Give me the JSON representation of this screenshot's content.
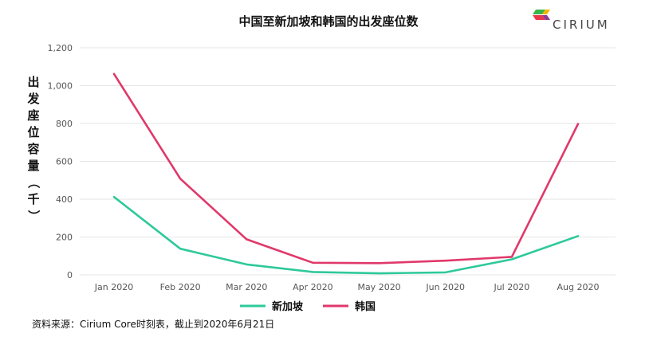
{
  "colors": {
    "singapore": "#2ec99a",
    "korea": "#e0386a",
    "logo_green": "#3ab54a",
    "logo_red": "#e8374b",
    "logo_yellow": "#f5b400",
    "logo_purple": "#8e3a96"
  },
  "logo": {
    "text": "CIRIUM",
    "icon": "cirium-logo-icon"
  },
  "source": "资料来源：Cirium Core时刻表，截止到2020年6月21日",
  "chart_data": {
    "type": "line",
    "title": "中国至新加坡和韩国的出发座位数",
    "ylabel_chars": [
      "出",
      "发",
      "座",
      "位",
      "容",
      "量",
      "（",
      "千",
      "）"
    ],
    "xlabel": "",
    "categories": [
      "Jan 2020",
      "Feb 2020",
      "Mar 2020",
      "Apr 2020",
      "May 2020",
      "Jun 2020",
      "Jul 2020",
      "Aug 2020"
    ],
    "ylim": [
      0,
      1200
    ],
    "yticks": [
      0,
      200,
      400,
      600,
      800,
      1000,
      1200
    ],
    "ytick_labels": [
      "0",
      "200",
      "400",
      "600",
      "800",
      "1,000",
      "1,200"
    ],
    "grid": true,
    "legend_position": "bottom",
    "series": [
      {
        "name": "新加坡",
        "color_key": "singapore",
        "values": [
          412,
          138,
          55,
          15,
          8,
          13,
          82,
          205
        ]
      },
      {
        "name": "韩国",
        "color_key": "korea",
        "values": [
          1062,
          508,
          188,
          64,
          62,
          75,
          95,
          798
        ]
      }
    ]
  }
}
